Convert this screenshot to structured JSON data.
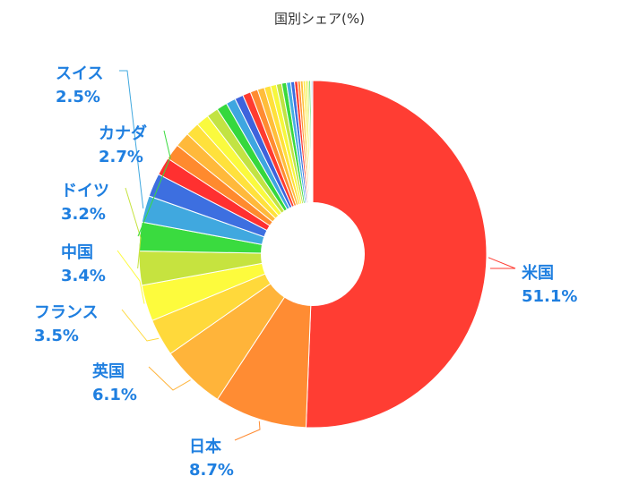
{
  "chart_data": {
    "type": "pie",
    "title": "国別シェア(%)",
    "label_color": "#1f7fe0",
    "slices": [
      {
        "label": "米国",
        "value": 51.1,
        "color": "#ff3d33"
      },
      {
        "label": "日本",
        "value": 8.7,
        "color": "#ff8c33"
      },
      {
        "label": "英国",
        "value": 6.1,
        "color": "#ffb43a"
      },
      {
        "label": "フランス",
        "value": 3.5,
        "color": "#ffd93b"
      },
      {
        "label": "中国",
        "value": 3.4,
        "color": "#fdfb3d"
      },
      {
        "label": "ドイツ",
        "value": 3.2,
        "color": "#c6e33f"
      },
      {
        "label": "カナダ",
        "value": 2.7,
        "color": "#3adb3f"
      },
      {
        "label": "スイス",
        "value": 2.5,
        "color": "#40a8df"
      },
      {
        "label": "",
        "value": 2.2,
        "color": "#3d6fe0"
      },
      {
        "label": "",
        "value": 1.7,
        "color": "#ff3030"
      },
      {
        "label": "",
        "value": 1.5,
        "color": "#ff8a2e"
      },
      {
        "label": "",
        "value": 1.4,
        "color": "#ffb93b"
      },
      {
        "label": "",
        "value": 1.3,
        "color": "#ffe13c"
      },
      {
        "label": "",
        "value": 1.2,
        "color": "#fafa3e"
      },
      {
        "label": "",
        "value": 1.1,
        "color": "#c2e343"
      },
      {
        "label": "",
        "value": 1.0,
        "color": "#35d83d"
      },
      {
        "label": "",
        "value": 0.9,
        "color": "#3ea6e0"
      },
      {
        "label": "",
        "value": 0.8,
        "color": "#3e63dc"
      },
      {
        "label": "",
        "value": 0.75,
        "color": "#ff3b30"
      },
      {
        "label": "",
        "value": 0.7,
        "color": "#ff8b31"
      },
      {
        "label": "",
        "value": 0.65,
        "color": "#ffbd3a"
      },
      {
        "label": "",
        "value": 0.6,
        "color": "#ffe03b"
      },
      {
        "label": "",
        "value": 0.55,
        "color": "#f6f73c"
      },
      {
        "label": "",
        "value": 0.5,
        "color": "#c0e342"
      },
      {
        "label": "",
        "value": 0.45,
        "color": "#3ad93d"
      },
      {
        "label": "",
        "value": 0.4,
        "color": "#44aee2"
      },
      {
        "label": "",
        "value": 0.35,
        "color": "#3b6ee0"
      },
      {
        "label": "",
        "value": 0.3,
        "color": "#ff3a32"
      },
      {
        "label": "",
        "value": 0.25,
        "color": "#ff9032"
      },
      {
        "label": "",
        "value": 0.25,
        "color": "#ffc13b"
      },
      {
        "label": "",
        "value": 0.2,
        "color": "#ffe43c"
      },
      {
        "label": "",
        "value": 0.2,
        "color": "#f0f53d"
      },
      {
        "label": "",
        "value": 0.15,
        "color": "#bfe244"
      },
      {
        "label": "",
        "value": 0.15,
        "color": "#3ad93f"
      },
      {
        "label": "",
        "value": 0.1,
        "color": "#48b0e2"
      },
      {
        "label": "",
        "value": 0.1,
        "color": "#3d70e0"
      }
    ]
  }
}
